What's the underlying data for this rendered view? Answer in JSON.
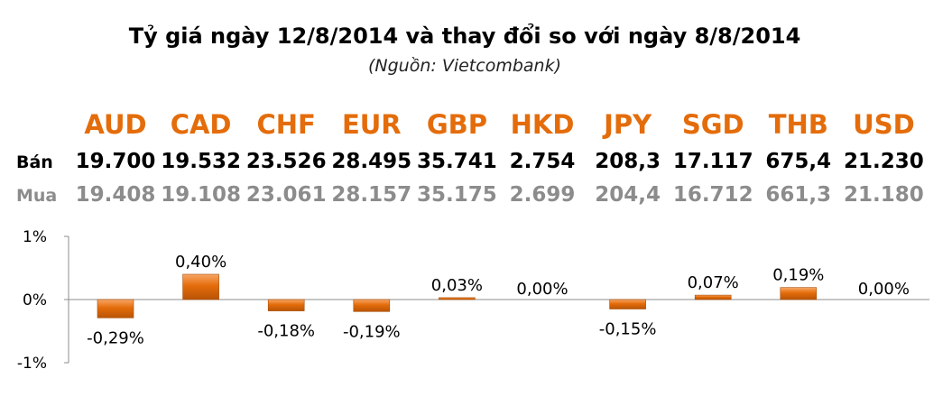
{
  "title": "Tỷ giá ngày 12/8/2014 và thay đổi so với ngày 8/8/2014",
  "subtitle": "(Nguồn: Vietcombank)",
  "rows": {
    "sell_label": "Bán",
    "buy_label": "Mua"
  },
  "colors": {
    "currency": "#e46c0a",
    "bar": "#e46c0a",
    "sell_text": "#000000",
    "buy_text": "#8c8c8c"
  },
  "chart_data": {
    "type": "bar",
    "categories": [
      "AUD",
      "CAD",
      "CHF",
      "EUR",
      "GBP",
      "HKD",
      "JPY",
      "SGD",
      "THB",
      "USD"
    ],
    "sell": [
      "19.700",
      "19.532",
      "23.526",
      "28.495",
      "35.741",
      "2.754",
      "208,3",
      "17.117",
      "675,4",
      "21.230"
    ],
    "buy": [
      "19.408",
      "19.108",
      "23.061",
      "28.157",
      "35.175",
      "2.699",
      "204,4",
      "16.712",
      "661,3",
      "21.180"
    ],
    "values": [
      -0.29,
      0.4,
      -0.18,
      -0.19,
      0.03,
      0.0,
      -0.15,
      0.07,
      0.19,
      0.0
    ],
    "data_labels": [
      "-0,29%",
      "0,40%",
      "-0,18%",
      "-0,19%",
      "0,03%",
      "0,00%",
      "-0,15%",
      "0,07%",
      "0,19%",
      "0,00%"
    ],
    "ylim": [
      -1,
      1
    ],
    "yticks": [
      "1%",
      "0%",
      "-1%"
    ],
    "grid": false,
    "legend": "none"
  }
}
